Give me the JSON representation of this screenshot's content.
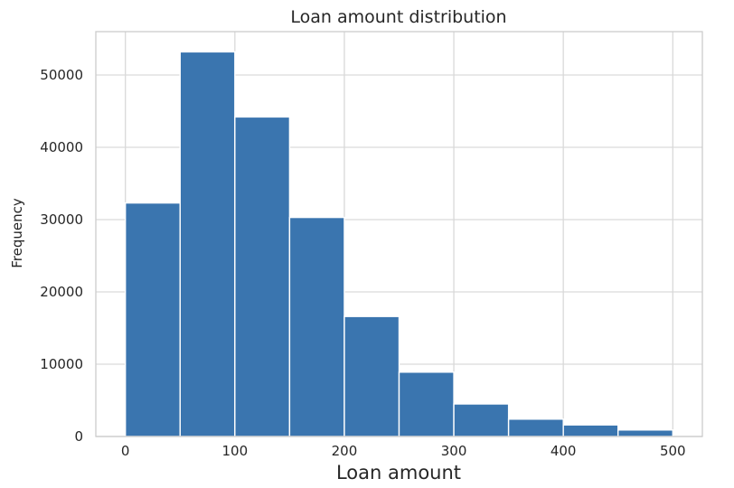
{
  "chart_data": {
    "type": "bar",
    "title": "Loan amount distribution",
    "xlabel": "Loan amount",
    "ylabel": "Frequency",
    "xlim": [
      -27,
      527
    ],
    "ylim": [
      0,
      56000
    ],
    "xticks": [
      0,
      100,
      200,
      300,
      400,
      500
    ],
    "yticks": [
      0,
      10000,
      20000,
      30000,
      40000,
      50000
    ],
    "grid": true,
    "bar_color": "#3a75af",
    "bins": [
      {
        "x0": 0,
        "x1": 50,
        "value": 32300
      },
      {
        "x0": 50,
        "x1": 100,
        "value": 53200
      },
      {
        "x0": 100,
        "x1": 150,
        "value": 44200
      },
      {
        "x0": 150,
        "x1": 200,
        "value": 30300
      },
      {
        "x0": 200,
        "x1": 250,
        "value": 16600
      },
      {
        "x0": 250,
        "x1": 300,
        "value": 8900
      },
      {
        "x0": 300,
        "x1": 350,
        "value": 4500
      },
      {
        "x0": 350,
        "x1": 400,
        "value": 2400
      },
      {
        "x0": 400,
        "x1": 450,
        "value": 1600
      },
      {
        "x0": 450,
        "x1": 500,
        "value": 900
      }
    ]
  }
}
